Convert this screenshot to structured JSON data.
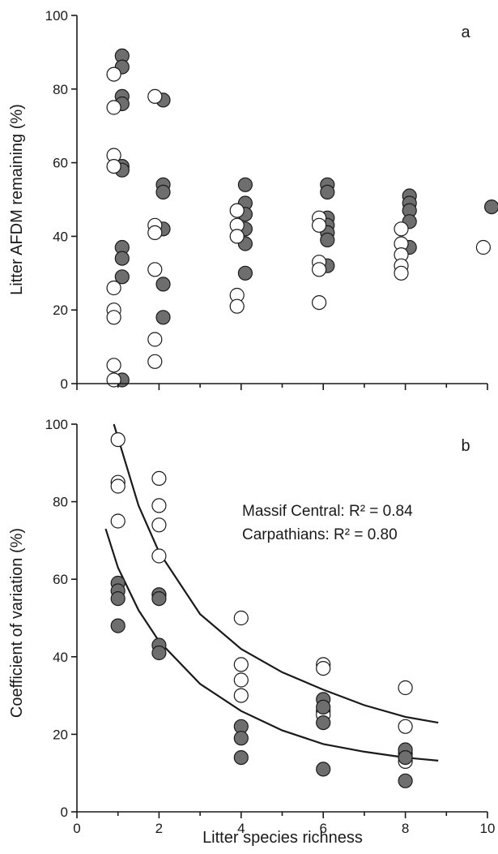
{
  "chart_data": [
    {
      "panel": "a",
      "type": "scatter",
      "title": "",
      "xlabel": "",
      "ylabel": "Litter AFDM remaining (%)",
      "xlim": [
        0,
        10
      ],
      "ylim": [
        0,
        100
      ],
      "xticks": [
        0,
        2,
        4,
        6,
        8,
        10
      ],
      "yticks": [
        0,
        20,
        40,
        60,
        80,
        100
      ],
      "show_xtick_labels": false,
      "grid": false,
      "series": [
        {
          "color": "#6e6e6e",
          "points": [
            [
              1.1,
              89
            ],
            [
              1.1,
              86
            ],
            [
              1.1,
              78
            ],
            [
              1.1,
              76
            ],
            [
              1.1,
              59
            ],
            [
              1.1,
              58
            ],
            [
              1.1,
              37
            ],
            [
              1.1,
              34
            ],
            [
              1.1,
              29
            ],
            [
              1.1,
              1
            ],
            [
              2.1,
              77
            ],
            [
              2.1,
              54
            ],
            [
              2.1,
              52
            ],
            [
              2.1,
              42
            ],
            [
              2.1,
              27
            ],
            [
              2.1,
              18
            ],
            [
              4.1,
              54
            ],
            [
              4.1,
              49
            ],
            [
              4.1,
              46
            ],
            [
              4.1,
              42
            ],
            [
              4.1,
              38
            ],
            [
              4.1,
              30
            ],
            [
              6.1,
              54
            ],
            [
              6.1,
              52
            ],
            [
              6.1,
              45
            ],
            [
              6.1,
              43
            ],
            [
              6.1,
              41
            ],
            [
              6.1,
              39
            ],
            [
              6.1,
              32
            ],
            [
              8.1,
              51
            ],
            [
              8.1,
              49
            ],
            [
              8.1,
              47
            ],
            [
              8.1,
              44
            ],
            [
              8.1,
              37
            ],
            [
              10.1,
              48
            ]
          ]
        },
        {
          "color": "#ffffff",
          "points": [
            [
              0.9,
              84
            ],
            [
              0.9,
              75
            ],
            [
              0.9,
              62
            ],
            [
              0.9,
              59
            ],
            [
              0.9,
              26
            ],
            [
              0.9,
              20
            ],
            [
              0.9,
              18
            ],
            [
              0.9,
              5
            ],
            [
              0.9,
              1
            ],
            [
              1.9,
              78
            ],
            [
              1.9,
              43
            ],
            [
              1.9,
              41
            ],
            [
              1.9,
              31
            ],
            [
              1.9,
              12
            ],
            [
              1.9,
              6
            ],
            [
              3.9,
              47
            ],
            [
              3.9,
              43
            ],
            [
              3.9,
              40
            ],
            [
              3.9,
              24
            ],
            [
              3.9,
              21
            ],
            [
              5.9,
              45
            ],
            [
              5.9,
              43
            ],
            [
              5.9,
              33
            ],
            [
              5.9,
              31
            ],
            [
              5.9,
              22
            ],
            [
              7.9,
              42
            ],
            [
              7.9,
              38
            ],
            [
              7.9,
              35
            ],
            [
              7.9,
              32
            ],
            [
              7.9,
              30
            ],
            [
              9.9,
              37
            ]
          ]
        }
      ]
    },
    {
      "panel": "b",
      "type": "scatter",
      "title": "",
      "xlabel": "Litter species richness",
      "ylabel": "Coefficient of variation (%)",
      "xlim": [
        0,
        10
      ],
      "ylim": [
        0,
        100
      ],
      "xticks": [
        0,
        2,
        4,
        6,
        8,
        10
      ],
      "yticks": [
        0,
        20,
        40,
        60,
        80,
        100
      ],
      "show_xtick_labels": true,
      "grid": false,
      "annotations": [
        "Massif Central: R² = 0.84",
        "Carpathians: R² = 0.80"
      ],
      "series": [
        {
          "color": "#ffffff",
          "points": [
            [
              1,
              96
            ],
            [
              1,
              85
            ],
            [
              1,
              84
            ],
            [
              1,
              75
            ],
            [
              2,
              86
            ],
            [
              2,
              79
            ],
            [
              2,
              74
            ],
            [
              2,
              66
            ],
            [
              2,
              56
            ],
            [
              4,
              50
            ],
            [
              4,
              38
            ],
            [
              4,
              34
            ],
            [
              4,
              30
            ],
            [
              6,
              38
            ],
            [
              6,
              37
            ],
            [
              6,
              26
            ],
            [
              6,
              25
            ],
            [
              8,
              32
            ],
            [
              8,
              22
            ],
            [
              8,
              15
            ],
            [
              8,
              13
            ]
          ],
          "fit": [
            [
              0.9,
              100
            ],
            [
              1.5,
              79
            ],
            [
              2,
              67
            ],
            [
              3,
              51
            ],
            [
              4,
              42
            ],
            [
              5,
              36
            ],
            [
              6,
              31.5
            ],
            [
              7,
              27.5
            ],
            [
              8,
              24.5
            ],
            [
              8.8,
              23
            ]
          ]
        },
        {
          "color": "#6e6e6e",
          "points": [
            [
              1,
              59
            ],
            [
              1,
              57
            ],
            [
              1,
              55
            ],
            [
              1,
              48
            ],
            [
              2,
              56
            ],
            [
              2,
              55
            ],
            [
              2,
              43
            ],
            [
              2,
              41
            ],
            [
              4,
              22
            ],
            [
              4,
              19
            ],
            [
              4,
              14
            ],
            [
              6,
              29
            ],
            [
              6,
              27
            ],
            [
              6,
              23
            ],
            [
              6,
              11
            ],
            [
              8,
              16
            ],
            [
              8,
              14
            ],
            [
              8,
              8
            ]
          ],
          "fit": [
            [
              0.7,
              73
            ],
            [
              1,
              63
            ],
            [
              1.5,
              52
            ],
            [
              2,
              44
            ],
            [
              3,
              33
            ],
            [
              4,
              26
            ],
            [
              5,
              21
            ],
            [
              6,
              17.5
            ],
            [
              7,
              15.5
            ],
            [
              8,
              14
            ],
            [
              8.8,
              13.2
            ]
          ]
        }
      ]
    }
  ]
}
